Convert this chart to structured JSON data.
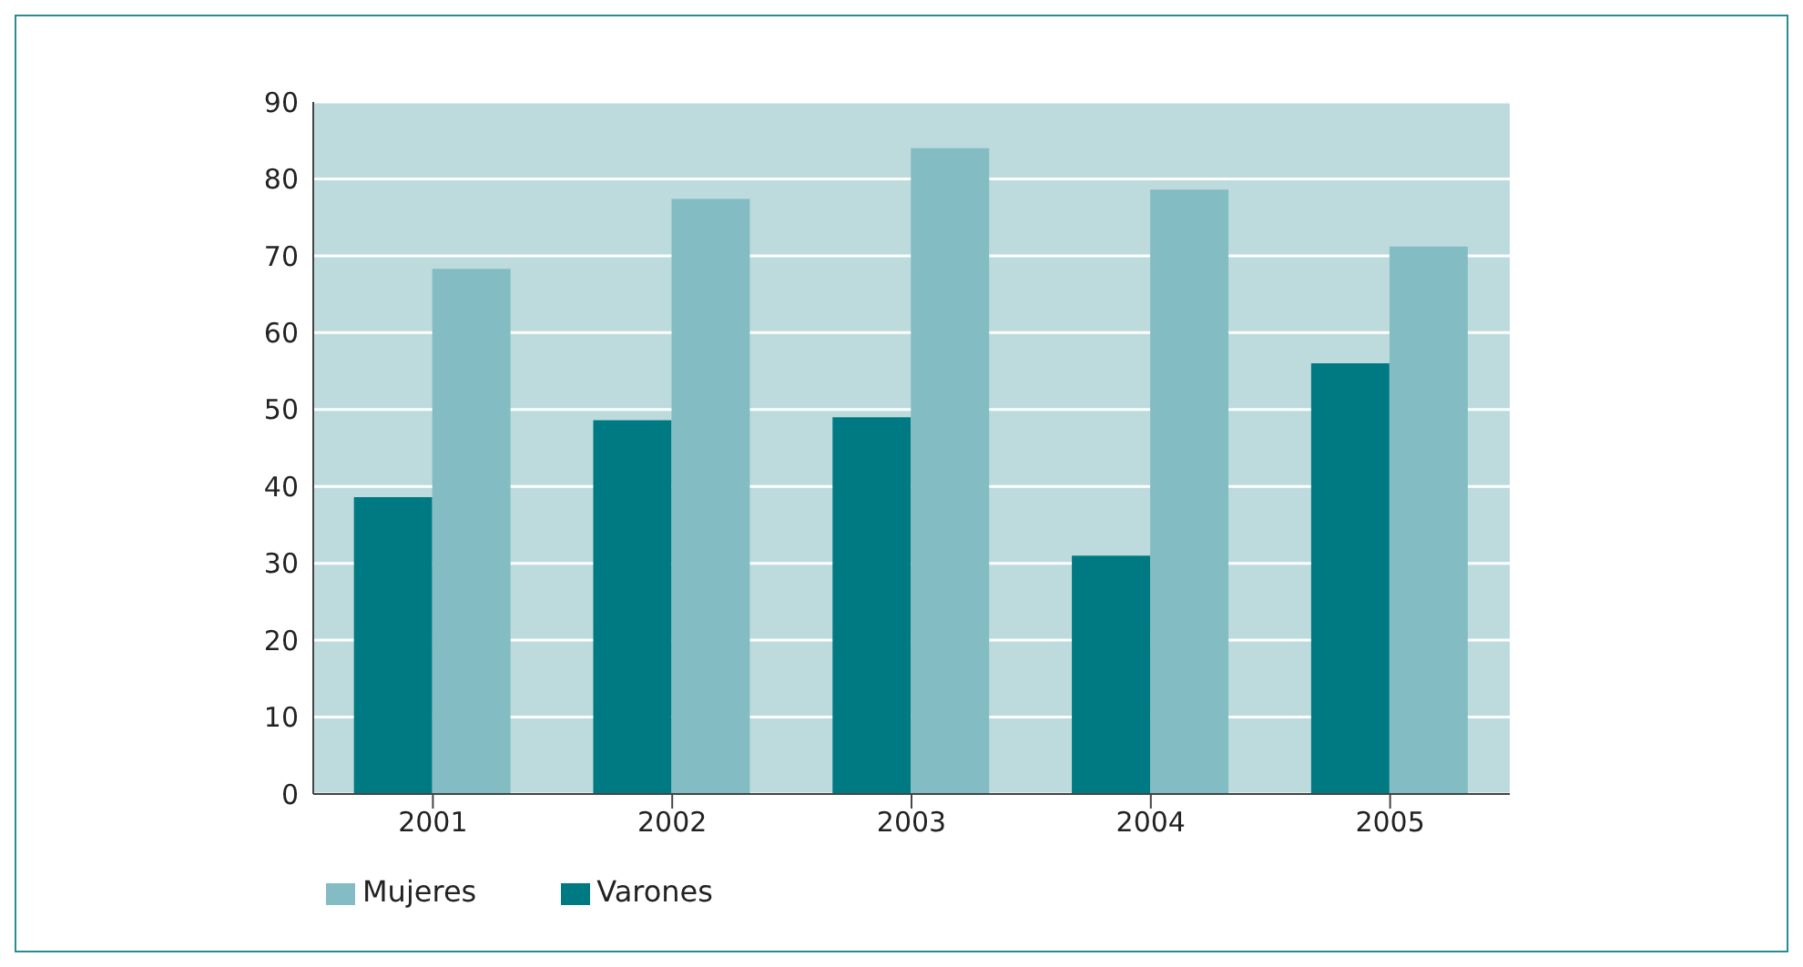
{
  "chart_data": {
    "type": "bar",
    "categories": [
      "2001",
      "2002",
      "2003",
      "2004",
      "2005"
    ],
    "series": [
      {
        "name": "Varones",
        "color": "#007a82",
        "values": [
          38.6,
          48.6,
          49.0,
          31.0,
          56.0
        ]
      },
      {
        "name": "Mujeres",
        "color": "#83bcc2",
        "values": [
          68.3,
          77.4,
          84.0,
          78.6,
          71.2
        ]
      }
    ],
    "ylim": [
      0,
      90
    ],
    "yticks": [
      0,
      10,
      20,
      30,
      40,
      50,
      60,
      70,
      80,
      90
    ],
    "grid": "y",
    "legend": "bottom left"
  }
}
